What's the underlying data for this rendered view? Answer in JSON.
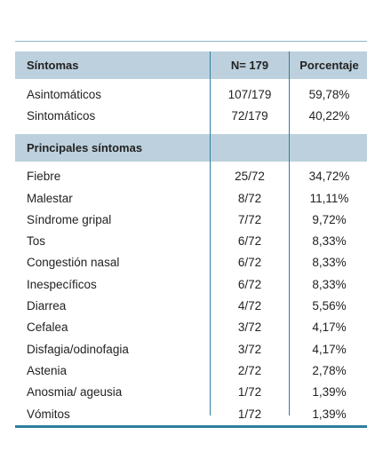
{
  "table": {
    "header": {
      "sintomas": "Síntomas",
      "n": "N= 179",
      "porcentaje": "Porcentaje"
    },
    "group1": [
      {
        "label": "Asintomáticos",
        "n": "107/179",
        "pct": "59,78%"
      },
      {
        "label": "Sintomáticos",
        "n": "72/179",
        "pct": "40,22%"
      }
    ],
    "section": {
      "label": "Principales síntomas"
    },
    "group2": [
      {
        "label": "Fiebre",
        "n": "25/72",
        "pct": "34,72%"
      },
      {
        "label": "Malestar",
        "n": "8/72",
        "pct": "11,11%"
      },
      {
        "label": "Síndrome gripal",
        "n": "7/72",
        "pct": "9,72%"
      },
      {
        "label": "Tos",
        "n": "6/72",
        "pct": "8,33%"
      },
      {
        "label": "Congestión nasal",
        "n": "6/72",
        "pct": "8,33%"
      },
      {
        "label": "Inespecíficos",
        "n": "6/72",
        "pct": "8,33%"
      },
      {
        "label": "Diarrea",
        "n": "4/72",
        "pct": "5,56%"
      },
      {
        "label": "Cefalea",
        "n": "3/72",
        "pct": "4,17%"
      },
      {
        "label": "Disfagia/odinofagia",
        "n": "3/72",
        "pct": "4,17%"
      },
      {
        "label": "Astenia",
        "n": "2/72",
        "pct": "2,78%"
      },
      {
        "label": "Anosmia/ ageusia",
        "n": "1/72",
        "pct": "1,39%"
      },
      {
        "label": "Vómitos",
        "n": "1/72",
        "pct": "1,39%"
      }
    ]
  }
}
